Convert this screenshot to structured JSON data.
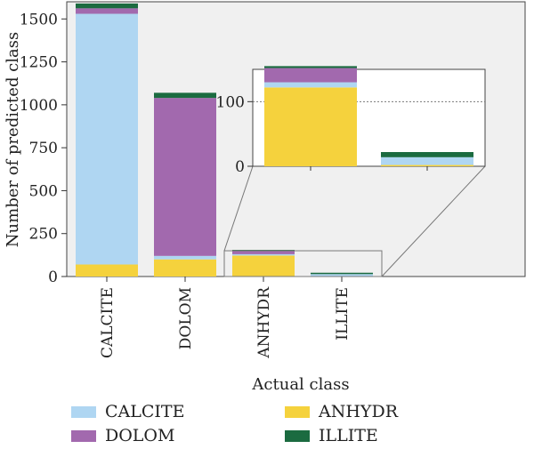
{
  "chart_data": {
    "type": "bar",
    "stacked": true,
    "xlabel": "Actual class",
    "ylabel": "Number of predicted class",
    "categories": [
      "CALCITE",
      "DOLOM",
      "ANHYDR",
      "ILLITE"
    ],
    "ylim": [
      0,
      1600
    ],
    "yticks": [
      0,
      250,
      500,
      750,
      1000,
      1250,
      1500
    ],
    "series": [
      {
        "name": "ANHYDR",
        "values": [
          70,
          100,
          122,
          2
        ]
      },
      {
        "name": "CALCITE",
        "values": [
          1460,
          20,
          8,
          12
        ]
      },
      {
        "name": "DOLOM",
        "values": [
          32,
          920,
          22,
          0
        ]
      },
      {
        "name": "ILLITE",
        "values": [
          28,
          30,
          3,
          8
        ]
      }
    ],
    "inset": {
      "categories": [
        "ANHYDR",
        "ILLITE"
      ],
      "ylim": [
        0,
        150
      ],
      "yticks": [
        0,
        100
      ],
      "reference_line": 100
    },
    "legend_position": "bottom",
    "grid": false
  },
  "colors": {
    "CALCITE": "#afd6f2",
    "DOLOM": "#a269ae",
    "ANHYDR": "#f5d23d",
    "ILLITE": "#1b6b40",
    "plot_bg": "#f0f0f0"
  },
  "legend": {
    "items": [
      "CALCITE",
      "DOLOM",
      "ANHYDR",
      "ILLITE"
    ]
  }
}
